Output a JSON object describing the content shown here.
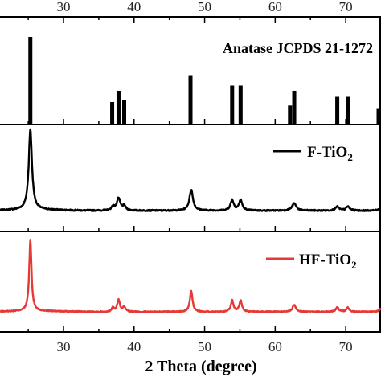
{
  "chart_data": {
    "type": "line",
    "xlabel": "2 Theta (degree)",
    "xlim": [
      21,
      75
    ],
    "x_ticks": [
      30,
      40,
      50,
      60,
      70
    ],
    "grid": false,
    "panels": [
      {
        "kind": "reference",
        "label": "Anatase JCPDS 21-1272",
        "color": "#000000",
        "peaks": [
          {
            "x": 25.3,
            "intensity": 100
          },
          {
            "x": 36.9,
            "intensity": 25
          },
          {
            "x": 37.8,
            "intensity": 38
          },
          {
            "x": 38.6,
            "intensity": 27
          },
          {
            "x": 48.0,
            "intensity": 56
          },
          {
            "x": 53.9,
            "intensity": 44
          },
          {
            "x": 55.1,
            "intensity": 44
          },
          {
            "x": 62.1,
            "intensity": 21
          },
          {
            "x": 62.7,
            "intensity": 38
          },
          {
            "x": 68.8,
            "intensity": 31
          },
          {
            "x": 70.3,
            "intensity": 31
          },
          {
            "x": 75.0,
            "intensity": 18
          }
        ]
      },
      {
        "kind": "pattern",
        "name": "F-TiO",
        "name_subscript": "2",
        "color": "#000000",
        "peaks": [
          {
            "x": 25.3,
            "intensity": 100,
            "width": 0.55
          },
          {
            "x": 37.0,
            "intensity": 5,
            "width": 0.45
          },
          {
            "x": 37.8,
            "intensity": 15,
            "width": 0.6
          },
          {
            "x": 38.6,
            "intensity": 6,
            "width": 0.45
          },
          {
            "x": 48.1,
            "intensity": 26,
            "width": 0.6
          },
          {
            "x": 53.9,
            "intensity": 13,
            "width": 0.55
          },
          {
            "x": 55.1,
            "intensity": 13,
            "width": 0.55
          },
          {
            "x": 62.7,
            "intensity": 9,
            "width": 0.7
          },
          {
            "x": 68.8,
            "intensity": 5,
            "width": 0.6
          },
          {
            "x": 70.3,
            "intensity": 5,
            "width": 0.6
          },
          {
            "x": 75.0,
            "intensity": 4,
            "width": 0.6
          }
        ]
      },
      {
        "kind": "pattern",
        "name": "HF-TiO",
        "name_subscript": "2",
        "color": "#e53935",
        "peaks": [
          {
            "x": 25.3,
            "intensity": 100,
            "width": 0.4
          },
          {
            "x": 37.0,
            "intensity": 6,
            "width": 0.4
          },
          {
            "x": 37.8,
            "intensity": 17,
            "width": 0.45
          },
          {
            "x": 38.6,
            "intensity": 7,
            "width": 0.4
          },
          {
            "x": 48.1,
            "intensity": 29,
            "width": 0.45
          },
          {
            "x": 53.9,
            "intensity": 16,
            "width": 0.45
          },
          {
            "x": 55.1,
            "intensity": 16,
            "width": 0.45
          },
          {
            "x": 62.7,
            "intensity": 10,
            "width": 0.55
          },
          {
            "x": 68.8,
            "intensity": 6,
            "width": 0.5
          },
          {
            "x": 70.3,
            "intensity": 6,
            "width": 0.5
          },
          {
            "x": 75.0,
            "intensity": 5,
            "width": 0.5
          }
        ]
      }
    ]
  }
}
